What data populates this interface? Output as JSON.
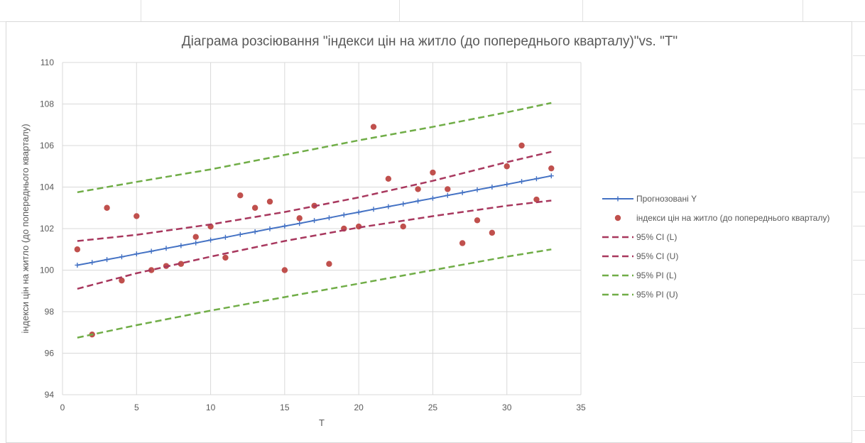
{
  "chart_data": {
    "type": "scatter",
    "title": "Діаграма розсіювання \"індекси цін на житло (до попереднього кварталу)\"vs. \"T\"",
    "xlabel": "T",
    "ylabel": "індекси цін на житло (до попереднього кварталу)",
    "xlim": [
      0,
      35
    ],
    "ylim": [
      94,
      110
    ],
    "x_ticks": [
      "0",
      "5",
      "10",
      "15",
      "20",
      "25",
      "30",
      "35"
    ],
    "y_ticks": [
      "94",
      "96",
      "98",
      "100",
      "102",
      "104",
      "106",
      "108",
      "110"
    ],
    "grid": true,
    "legend_position": "right",
    "series": [
      {
        "name": "Прогнозовані Y",
        "kind": "line-markers",
        "color": "#4472c4",
        "x": [
          1,
          2,
          3,
          4,
          5,
          6,
          7,
          8,
          9,
          10,
          11,
          12,
          13,
          14,
          15,
          16,
          17,
          18,
          19,
          20,
          21,
          22,
          23,
          24,
          25,
          26,
          27,
          28,
          29,
          30,
          31,
          32,
          33
        ],
        "y": [
          100.24,
          100.37,
          100.51,
          100.64,
          100.78,
          100.91,
          101.05,
          101.18,
          101.31,
          101.45,
          101.58,
          101.72,
          101.85,
          101.99,
          102.12,
          102.25,
          102.39,
          102.52,
          102.66,
          102.79,
          102.93,
          103.06,
          103.19,
          103.33,
          103.46,
          103.6,
          103.73,
          103.87,
          104.0,
          104.13,
          104.27,
          104.4,
          104.54
        ]
      },
      {
        "name": "індекси цін на житло (до попереднього кварталу)",
        "kind": "points",
        "color": "#c0504d",
        "x": [
          1,
          2,
          3,
          4,
          5,
          6,
          7,
          8,
          9,
          10,
          11,
          12,
          13,
          14,
          15,
          16,
          17,
          18,
          19,
          20,
          21,
          22,
          23,
          24,
          25,
          26,
          27,
          28,
          29,
          30,
          31,
          32,
          33
        ],
        "y": [
          101.0,
          96.9,
          103.0,
          99.5,
          102.6,
          100.0,
          100.2,
          100.3,
          101.6,
          102.1,
          100.6,
          103.6,
          103.0,
          103.3,
          100.0,
          102.5,
          103.1,
          100.3,
          102.0,
          102.1,
          106.9,
          104.4,
          102.1,
          103.9,
          104.7,
          103.9,
          101.3,
          102.4,
          101.8,
          105.0,
          106.0,
          103.4,
          104.9
        ]
      },
      {
        "name": "95% CI (L)",
        "kind": "dashed",
        "color": "#a8385e",
        "x": [
          1,
          5,
          10,
          15,
          20,
          25,
          30,
          33
        ],
        "y": [
          99.1,
          99.85,
          100.65,
          101.4,
          102.05,
          102.6,
          103.1,
          103.35
        ]
      },
      {
        "name": "95% CI (U)",
        "kind": "dashed",
        "color": "#a8385e",
        "x": [
          1,
          5,
          10,
          15,
          20,
          25,
          30,
          33
        ],
        "y": [
          101.4,
          101.7,
          102.2,
          102.8,
          103.5,
          104.3,
          105.2,
          105.7
        ]
      },
      {
        "name": "95% PI (L)",
        "kind": "dashed",
        "color": "#70ad47",
        "x": [
          1,
          5,
          10,
          15,
          20,
          25,
          30,
          33
        ],
        "y": [
          96.75,
          97.35,
          98.05,
          98.7,
          99.35,
          100.0,
          100.65,
          101.0
        ]
      },
      {
        "name": "95% PI (U)",
        "kind": "dashed",
        "color": "#70ad47",
        "x": [
          1,
          5,
          10,
          15,
          20,
          25,
          30,
          33
        ],
        "y": [
          103.75,
          104.25,
          104.85,
          105.55,
          106.25,
          106.9,
          107.6,
          108.05
        ]
      }
    ]
  }
}
